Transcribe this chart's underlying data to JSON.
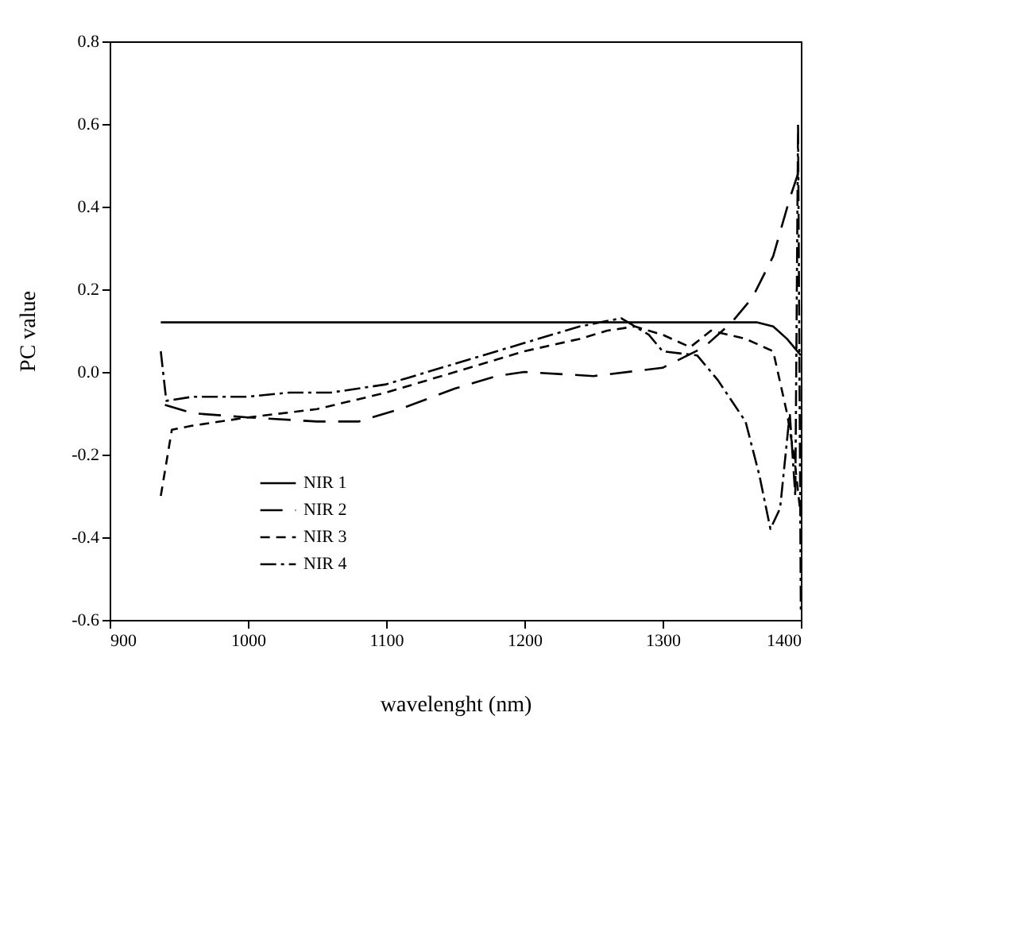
{
  "chart_data": {
    "type": "line",
    "xlabel": "wavelenght (nm)",
    "ylabel": "PC value",
    "xlim": [
      900,
      1400
    ],
    "xticks": [
      900,
      1000,
      1100,
      1200,
      1300,
      1400
    ],
    "ylim": [
      -0.6,
      0.8
    ],
    "yticks": [
      {
        "value": -0.6,
        "label": "-0.6"
      },
      {
        "value": -0.4,
        "label": "-0.4"
      },
      {
        "value": -0.2,
        "label": "-0.2"
      },
      {
        "value": 0,
        "label": "0.0"
      },
      {
        "value": 0.2,
        "label": "0.2"
      },
      {
        "value": 0.4,
        "label": "0.4"
      },
      {
        "value": 0.6,
        "label": "0.6"
      },
      {
        "value": 0.8,
        "label": "0.8"
      }
    ],
    "grid": false,
    "legend": "bottom left",
    "marker": "none",
    "series": [
      {
        "name": "NIR 1",
        "color": "#000000",
        "line_style": "solid",
        "x": [
          937,
          1000,
          1100,
          1200,
          1300,
          1350,
          1368,
          1380,
          1390,
          1400
        ],
        "values": [
          0.12,
          0.12,
          0.12,
          0.12,
          0.12,
          0.12,
          0.12,
          0.11,
          0.08,
          0.04
        ]
      },
      {
        "name": "NIR 2",
        "color": "#000000",
        "line_style": "longdash",
        "x": [
          940,
          960,
          1000,
          1050,
          1080,
          1110,
          1150,
          1180,
          1200,
          1250,
          1300,
          1330,
          1350,
          1365,
          1380,
          1392,
          1396,
          1400
        ],
        "values": [
          -0.08,
          -0.1,
          -0.11,
          -0.12,
          -0.12,
          -0.09,
          -0.04,
          -0.01,
          0.0,
          -0.01,
          0.01,
          0.06,
          0.12,
          0.18,
          0.28,
          0.42,
          0.46,
          0.5
        ]
      },
      {
        "name": "NIR 3",
        "color": "#000000",
        "line_style": "dashed",
        "x": [
          937,
          945,
          960,
          1000,
          1050,
          1100,
          1150,
          1200,
          1240,
          1260,
          1280,
          1300,
          1320,
          1335,
          1360,
          1380,
          1390,
          1395,
          1400
        ],
        "values": [
          -0.3,
          -0.14,
          -0.13,
          -0.11,
          -0.09,
          -0.05,
          0.0,
          0.05,
          0.08,
          0.1,
          0.11,
          0.09,
          0.06,
          0.1,
          0.08,
          0.05,
          -0.1,
          -0.2,
          -0.35
        ]
      },
      {
        "name": "NIR 4",
        "color": "#000000",
        "line_style": "dashdot",
        "x": [
          937,
          941,
          960,
          1000,
          1030,
          1060,
          1100,
          1150,
          1200,
          1240,
          1270,
          1290,
          1300,
          1325,
          1340,
          1360,
          1370,
          1378,
          1385,
          1392,
          1396,
          1398,
          1400
        ],
        "values": [
          0.05,
          -0.07,
          -0.06,
          -0.06,
          -0.05,
          -0.05,
          -0.03,
          0.02,
          0.07,
          0.11,
          0.13,
          0.09,
          0.05,
          0.04,
          -0.02,
          -0.12,
          -0.25,
          -0.38,
          -0.33,
          -0.1,
          -0.3,
          0.6,
          -0.58
        ]
      }
    ]
  }
}
